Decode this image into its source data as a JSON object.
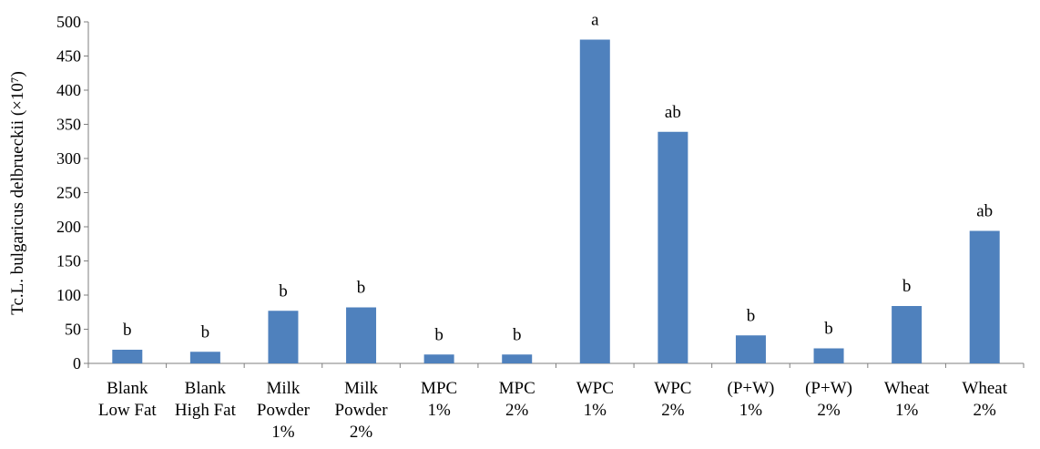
{
  "chart_data": {
    "type": "bar",
    "ylabel": "Tc.L. bulgaricus delbrueckii (×10⁷)",
    "xlabel": "",
    "ylim": [
      0,
      500
    ],
    "yticks": [
      0,
      50,
      100,
      150,
      200,
      250,
      300,
      350,
      400,
      450,
      500
    ],
    "grid": false,
    "bar_color": "#4f81bd",
    "categories": [
      [
        "Blank",
        "Low Fat"
      ],
      [
        "Blank",
        "High Fat"
      ],
      [
        "Milk",
        "Powder",
        "1%"
      ],
      [
        "Milk",
        "Powder",
        "2%"
      ],
      [
        "MPC",
        "1%"
      ],
      [
        "MPC",
        "2%"
      ],
      [
        "WPC",
        "1%"
      ],
      [
        "WPC",
        "2%"
      ],
      [
        "(P+W)",
        "1%"
      ],
      [
        "(P+W)",
        "2%"
      ],
      [
        "Wheat",
        "1%"
      ],
      [
        "Wheat",
        "2%"
      ]
    ],
    "values": [
      20,
      17,
      77,
      82,
      13,
      13,
      474,
      339,
      41,
      22,
      84,
      194
    ],
    "annotations": [
      "b",
      "b",
      "b",
      "b",
      "b",
      "b",
      "a",
      "ab",
      "b",
      "b",
      "b",
      "ab"
    ]
  }
}
